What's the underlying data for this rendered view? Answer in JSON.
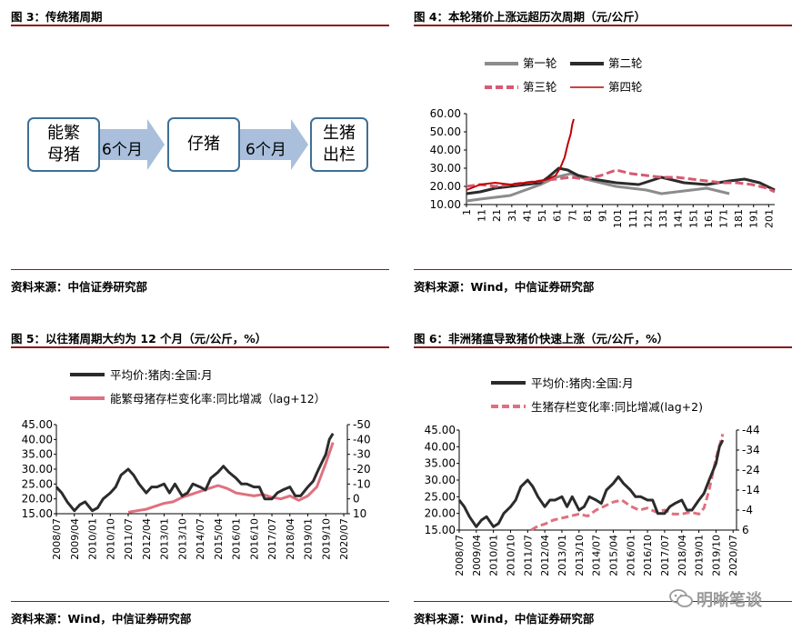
{
  "fig3": {
    "title": "图 3：传统猪周期",
    "source": "资料来源：中信证券研究部",
    "boxes": [
      "能繁\n母猪",
      "仔猪",
      "生猪\n出栏"
    ],
    "arrows": [
      "6个月",
      "6个月"
    ]
  },
  "fig4": {
    "title": "图 4：本轮猪价上涨远超历次周期（元/公斤）",
    "source": "资料来源：Wind，中信证券研究部"
  },
  "fig5": {
    "title": "图 5：以往猪周期大约为 12 个月（元/公斤，%）",
    "source": "资料来源：Wind，中信证券研究部"
  },
  "fig6": {
    "title": "图 6：非洲猪瘟导致猪价快速上涨（元/公斤，%）",
    "source": "资料来源：Wind，中信证券研究部"
  },
  "watermark": "明晰笔谈",
  "chart_data": [
    {
      "type": "line",
      "chart": "fig4",
      "legend": [
        "第一轮",
        "第二轮",
        "第三轮",
        "第四轮"
      ],
      "legend_placement": "top",
      "xticks": [
        "1",
        "11",
        "21",
        "31",
        "41",
        "51",
        "61",
        "71",
        "81",
        "91",
        "101",
        "111",
        "121",
        "131",
        "141",
        "151",
        "161",
        "171",
        "181",
        "191",
        "201"
      ],
      "yticks": [
        "10.00",
        "20.00",
        "30.00",
        "40.00",
        "50.00",
        "60.00"
      ],
      "ylim": [
        10,
        60
      ],
      "xlim": [
        1,
        205
      ],
      "colors": {
        "第一轮": "#8c8c8c",
        "第二轮": "#2b2b2b",
        "第三轮": "#d75a72",
        "第四轮": "#c00000"
      },
      "series": [
        {
          "name": "第一轮",
          "x": [
            1,
            10,
            20,
            30,
            40,
            50,
            60,
            70,
            80,
            90,
            100,
            110,
            120,
            130,
            140,
            150,
            160,
            170,
            175
          ],
          "y": [
            12,
            13,
            14,
            15,
            18,
            21,
            25,
            27,
            24,
            22,
            20,
            19,
            18,
            16,
            17,
            18,
            19,
            17,
            16
          ]
        },
        {
          "name": "第二轮",
          "x": [
            1,
            10,
            20,
            30,
            40,
            50,
            55,
            62,
            68,
            75,
            85,
            100,
            115,
            130,
            145,
            160,
            175,
            185,
            195,
            205
          ],
          "y": [
            16,
            17,
            19,
            20,
            21,
            22,
            25,
            30,
            29,
            26,
            24,
            22,
            21,
            25,
            22,
            21,
            23,
            24,
            22,
            18
          ]
        },
        {
          "name": "第三轮",
          "x": [
            1,
            10,
            20,
            30,
            40,
            50,
            60,
            70,
            80,
            90,
            100,
            110,
            120,
            130,
            140,
            150,
            160,
            170,
            180,
            190,
            200,
            205
          ],
          "y": [
            20,
            21,
            20,
            21,
            22,
            23,
            24,
            25,
            24,
            26,
            29,
            27,
            26,
            25,
            25,
            24,
            23,
            22,
            22,
            21,
            19,
            17
          ]
        },
        {
          "name": "第四轮",
          "x": [
            1,
            10,
            20,
            30,
            40,
            50,
            55,
            60,
            63,
            66,
            68,
            70,
            71,
            72
          ],
          "y": [
            18,
            21,
            22,
            21,
            22,
            23,
            24,
            26,
            30,
            36,
            43,
            49,
            54,
            57
          ]
        }
      ]
    },
    {
      "type": "line",
      "chart": "fig5",
      "legend": [
        "平均价:猪肉:全国:月",
        "能繁母猪存栏变化率:同比增减（lag+12）"
      ],
      "legend_placement": "top-left",
      "xticks": [
        "2008/07",
        "2009/04",
        "2010/01",
        "2010/10",
        "2011/07",
        "2012/04",
        "2013/01",
        "2013/10",
        "2014/07",
        "2015/04",
        "2016/01",
        "2016/10",
        "2017/07",
        "2018/04",
        "2019/01",
        "2019/10",
        "2020/07"
      ],
      "yticks_left": [
        "15.00",
        "20.00",
        "25.00",
        "30.00",
        "35.00",
        "40.00",
        "45.00"
      ],
      "yticks_right": [
        "10",
        "0",
        "-10",
        "-20",
        "-30",
        "-40",
        "-50"
      ],
      "ylim_left": [
        15,
        45
      ],
      "ylim_right": [
        10,
        -50
      ],
      "colors": {
        "price": "#2b2b2b",
        "sows": "#e0707f"
      },
      "series": [
        {
          "name": "平均价:猪肉:全国:月",
          "x": [
            0,
            0.3,
            0.6,
            1,
            1.3,
            1.6,
            2,
            2.3,
            2.6,
            3,
            3.3,
            3.6,
            4,
            4.3,
            4.6,
            5,
            5.3,
            5.6,
            6,
            6.3,
            6.6,
            7,
            7.3,
            7.6,
            8,
            8.3,
            8.6,
            9,
            9.3,
            9.6,
            10,
            10.3,
            10.6,
            11,
            11.3,
            11.6,
            12,
            12.3,
            12.6,
            13,
            13.3,
            13.6,
            14,
            14.3,
            14.6,
            15,
            15.2,
            15.4
          ],
          "y": [
            24,
            22,
            19,
            16,
            18,
            19,
            16,
            17,
            20,
            22,
            24,
            28,
            30,
            28,
            25,
            22,
            24,
            24,
            25,
            22,
            25,
            21,
            22,
            25,
            24,
            23,
            27,
            29,
            31,
            29,
            27,
            25,
            25,
            24,
            24,
            20,
            20,
            22,
            23,
            24,
            21,
            21,
            24,
            26,
            30,
            35,
            40,
            42
          ]
        },
        {
          "name": "能繁母猪存栏变化率:同比增减（lag+12）",
          "x": [
            4,
            4.5,
            5,
            5.5,
            6,
            6.5,
            7,
            7.5,
            8,
            8.5,
            9,
            9.5,
            10,
            10.5,
            11,
            11.5,
            12,
            12.5,
            13,
            13.5,
            14,
            14.5,
            15,
            15.4
          ],
          "y": [
            9,
            8,
            7,
            5,
            3,
            2,
            -1,
            -3,
            -5,
            -7,
            -9,
            -7,
            -4,
            -3,
            -2,
            -3,
            -1,
            0,
            -2,
            1,
            -2,
            -8,
            -24,
            -38
          ]
        }
      ]
    },
    {
      "type": "line",
      "chart": "fig6",
      "legend": [
        "平均价:猪肉:全国:月",
        "生猪存栏变化率:同比增减(lag+2)"
      ],
      "legend_placement": "top-left",
      "xticks": [
        "2008/07",
        "2009/04",
        "2010/01",
        "2010/10",
        "2011/07",
        "2012/04",
        "2013/01",
        "2013/10",
        "2014/07",
        "2015/04",
        "2016/01",
        "2016/10",
        "2017/07",
        "2018/04",
        "2019/01",
        "2019/10",
        "2020/07"
      ],
      "yticks_left": [
        "15.00",
        "20.00",
        "25.00",
        "30.00",
        "35.00",
        "40.00",
        "45.00"
      ],
      "yticks_right": [
        "6",
        "-4",
        "-14",
        "-24",
        "-34",
        "-44"
      ],
      "ylim_left": [
        15,
        45
      ],
      "ylim_right": [
        6,
        -44
      ],
      "colors": {
        "price": "#2b2b2b",
        "hogs": "#e0707f"
      },
      "series": [
        {
          "name": "平均价:猪肉:全国:月",
          "x": [
            0,
            0.3,
            0.6,
            1,
            1.3,
            1.6,
            2,
            2.3,
            2.6,
            3,
            3.3,
            3.6,
            4,
            4.3,
            4.6,
            5,
            5.3,
            5.6,
            6,
            6.3,
            6.6,
            7,
            7.3,
            7.6,
            8,
            8.3,
            8.6,
            9,
            9.3,
            9.6,
            10,
            10.3,
            10.6,
            11,
            11.3,
            11.6,
            12,
            12.3,
            12.6,
            13,
            13.3,
            13.6,
            14,
            14.3,
            14.6,
            15,
            15.2,
            15.4
          ],
          "y": [
            24,
            22,
            19,
            16,
            18,
            19,
            16,
            17,
            20,
            22,
            24,
            28,
            30,
            28,
            25,
            22,
            24,
            24,
            25,
            22,
            25,
            21,
            22,
            25,
            24,
            23,
            27,
            29,
            31,
            29,
            27,
            25,
            25,
            24,
            24,
            20,
            20,
            22,
            23,
            24,
            21,
            21,
            24,
            26,
            30,
            35,
            40,
            42
          ]
        },
        {
          "name": "生猪存栏变化率:同比增减(lag+2)",
          "x": [
            4.2,
            4.6,
            5,
            5.5,
            6,
            6.5,
            7,
            7.5,
            8,
            8.5,
            9,
            9.5,
            10,
            10.5,
            11,
            11.5,
            12,
            12.5,
            13,
            13.5,
            14,
            14.3,
            14.6,
            15,
            15.4
          ],
          "y": [
            6,
            4,
            3,
            1,
            0,
            -1,
            -2,
            -1,
            -4,
            -6,
            -8,
            -9,
            -6,
            -4,
            -5,
            -3,
            -4,
            -2,
            -2,
            -3,
            -2,
            -5,
            -14,
            -30,
            -42
          ]
        }
      ]
    }
  ]
}
